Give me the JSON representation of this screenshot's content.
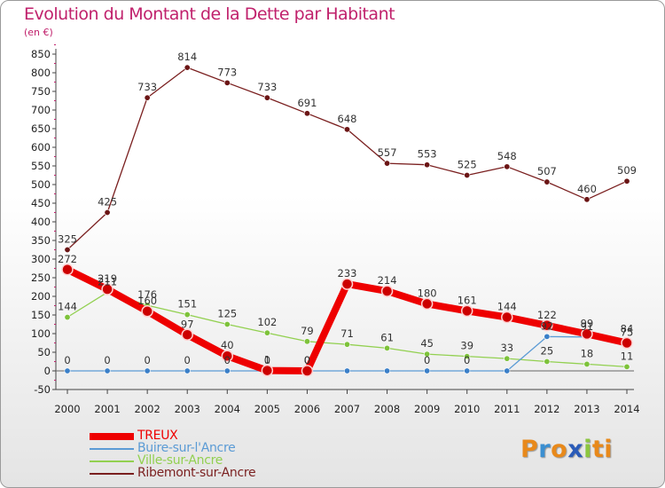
{
  "title": "Evolution du Montant de la Dette par Habitant",
  "subtitle": "(en €)",
  "logo": {
    "text": "Proxiti",
    "letters": [
      "P",
      "r",
      "o",
      "x",
      "i",
      "t",
      "i"
    ],
    "colors": [
      "#e8891b",
      "#3b8fd1",
      "#e8891b",
      "#2a5bb8",
      "#8cc63f",
      "#e8891b",
      "#e8891b"
    ]
  },
  "chart_data": {
    "type": "line",
    "title": "Evolution du Montant de la Dette par Habitant",
    "ylabel": "(en €)",
    "ylim": [
      -50,
      850
    ],
    "yticks": [
      -50,
      0,
      50,
      100,
      150,
      200,
      250,
      300,
      350,
      400,
      450,
      500,
      550,
      600,
      650,
      700,
      750,
      800,
      850
    ],
    "x": [
      2000,
      2001,
      2002,
      2003,
      2004,
      2005,
      2006,
      2007,
      2008,
      2009,
      2010,
      2011,
      2012,
      2013,
      2014
    ],
    "grid": false,
    "legend_position": "bottom-left",
    "series": [
      {
        "name": "TREUX",
        "color": "#ee0000",
        "values": [
          272,
          219,
          160,
          97,
          40,
          1,
          0,
          233,
          214,
          180,
          161,
          144,
          122,
          99,
          75
        ]
      },
      {
        "name": "Buire-sur-l'Ancre",
        "color": "#5b9bd5",
        "values": [
          0,
          0,
          0,
          0,
          0,
          0,
          0,
          0,
          0,
          0,
          0,
          0,
          92,
          91,
          84
        ]
      },
      {
        "name": "Ville-sur-Ancre",
        "color": "#92d050",
        "values": [
          144,
          211,
          176,
          151,
          125,
          102,
          79,
          71,
          61,
          45,
          39,
          33,
          25,
          18,
          11
        ]
      },
      {
        "name": "Ribemont-sur-Ancre",
        "color": "#7a1f1f",
        "values": [
          325,
          425,
          733,
          814,
          773,
          733,
          691,
          648,
          557,
          553,
          525,
          548,
          507,
          460,
          509
        ]
      }
    ],
    "data_labels": {
      "TREUX": [
        "272",
        "219",
        "160",
        "97",
        "40",
        "1",
        "0",
        "233",
        "214",
        "180",
        "161",
        "144",
        "122",
        "99",
        "75"
      ],
      "Buire-sur-l'Ancre": [
        "0",
        "0",
        "0",
        "0",
        "0",
        "0",
        "0",
        "",
        "",
        "0",
        "0",
        "",
        "92",
        "91",
        "84"
      ],
      "Ville-sur-Ancre": [
        "144",
        "211",
        "176",
        "151",
        "125",
        "102",
        "79",
        "71",
        "61",
        "45",
        "39",
        "33",
        "25",
        "18",
        "11"
      ],
      "Ribemont-sur-Ancre": [
        "325",
        "425",
        "733",
        "814",
        "773",
        "733",
        "691",
        "648",
        "557",
        "553",
        "525",
        "548",
        "507",
        "460",
        "509"
      ]
    }
  }
}
